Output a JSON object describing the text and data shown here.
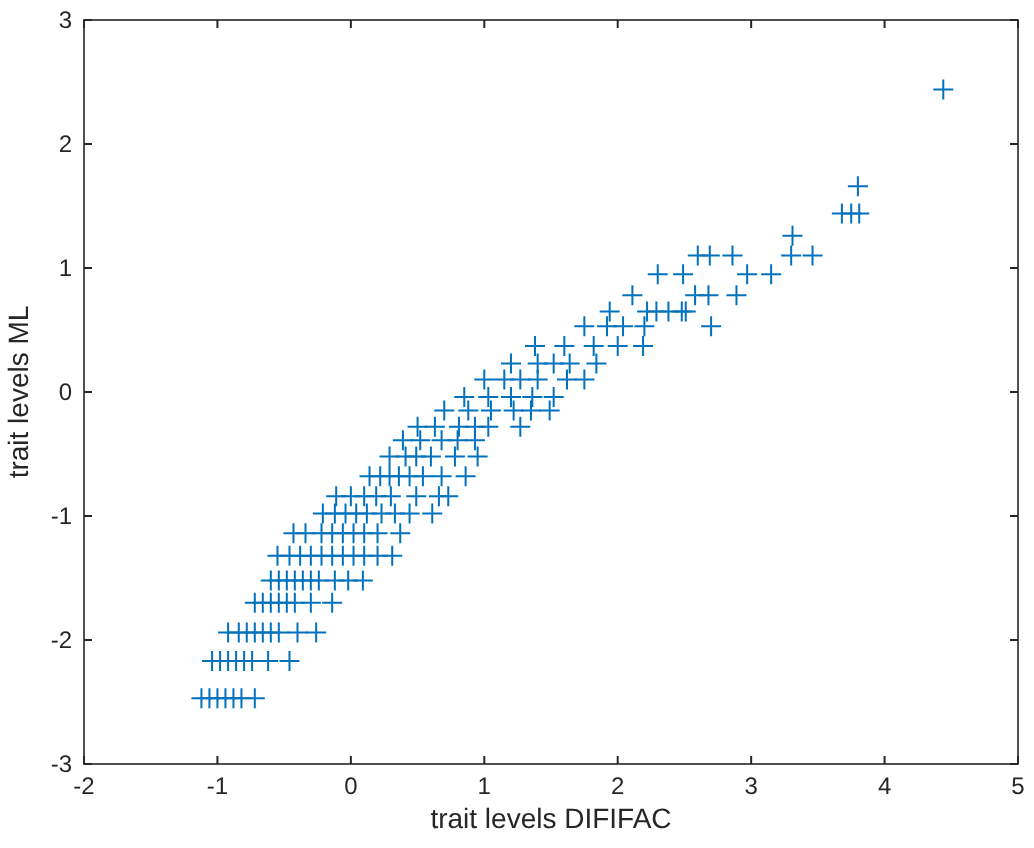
{
  "chart_data": {
    "type": "scatter",
    "xlabel": "trait levels DIFIFAC",
    "ylabel": "trait levels ML",
    "xlim": [
      -2,
      5
    ],
    "ylim": [
      -3,
      3
    ],
    "xticks": [
      -2,
      -1,
      0,
      1,
      2,
      3,
      4,
      5
    ],
    "yticks": [
      -3,
      -2,
      -1,
      0,
      1,
      2,
      3
    ],
    "marker": "cross",
    "series": [
      {
        "color": "#0072bd",
        "x": [
          -1.12,
          -1.06,
          -1.0,
          -0.94,
          -0.88,
          -0.82,
          -0.72,
          -1.04,
          -0.98,
          -0.92,
          -0.86,
          -0.8,
          -0.74,
          -0.62,
          -0.46,
          -0.92,
          -0.84,
          -0.78,
          -0.72,
          -0.66,
          -0.6,
          -0.54,
          -0.4,
          -0.26,
          -0.72,
          -0.66,
          -0.6,
          -0.54,
          -0.48,
          -0.42,
          -0.3,
          -0.14,
          -0.6,
          -0.54,
          -0.48,
          -0.42,
          -0.36,
          -0.3,
          -0.24,
          -0.12,
          -0.02,
          0.09,
          -0.55,
          -0.46,
          -0.38,
          -0.3,
          -0.22,
          -0.14,
          -0.06,
          0.02,
          0.1,
          0.2,
          0.31,
          -0.43,
          -0.34,
          -0.22,
          -0.14,
          -0.06,
          0.02,
          0.1,
          0.2,
          0.37,
          -0.21,
          -0.12,
          -0.04,
          0.04,
          0.12,
          0.23,
          0.33,
          0.44,
          0.61,
          -0.11,
          0.0,
          0.1,
          0.19,
          0.3,
          0.49,
          0.66,
          0.73,
          0.14,
          0.22,
          0.29,
          0.36,
          0.44,
          0.54,
          0.68,
          0.86,
          0.29,
          0.41,
          0.49,
          0.6,
          0.78,
          0.95,
          0.39,
          0.52,
          0.68,
          0.8,
          0.93,
          0.5,
          0.63,
          0.81,
          0.93,
          1.03,
          1.27,
          0.7,
          0.88,
          1.05,
          1.22,
          1.35,
          1.49,
          0.85,
          1.03,
          1.2,
          1.36,
          1.52,
          1.0,
          1.15,
          1.27,
          1.4,
          1.62,
          1.75,
          1.2,
          1.4,
          1.52,
          1.64,
          1.84,
          1.38,
          1.6,
          1.82,
          2.0,
          2.19,
          1.75,
          1.92,
          2.04,
          2.2,
          2.7,
          1.94,
          2.22,
          2.29,
          2.38,
          2.48,
          2.51,
          2.11,
          2.58,
          2.68,
          2.89,
          2.3,
          2.49,
          2.97,
          3.15,
          2.6,
          2.69,
          2.86,
          3.3,
          3.46,
          3.31,
          3.68,
          3.75,
          3.81,
          3.8,
          4.44
        ],
        "values": [
          -2.47,
          -2.47,
          -2.47,
          -2.47,
          -2.47,
          -2.47,
          -2.47,
          -2.17,
          -2.17,
          -2.17,
          -2.17,
          -2.17,
          -2.17,
          -2.17,
          -2.17,
          -1.94,
          -1.94,
          -1.94,
          -1.94,
          -1.94,
          -1.94,
          -1.94,
          -1.94,
          -1.94,
          -1.7,
          -1.7,
          -1.7,
          -1.7,
          -1.7,
          -1.7,
          -1.7,
          -1.7,
          -1.52,
          -1.52,
          -1.52,
          -1.52,
          -1.52,
          -1.52,
          -1.52,
          -1.52,
          -1.52,
          -1.52,
          -1.32,
          -1.32,
          -1.32,
          -1.32,
          -1.32,
          -1.32,
          -1.32,
          -1.32,
          -1.32,
          -1.32,
          -1.32,
          -1.14,
          -1.14,
          -1.14,
          -1.14,
          -1.14,
          -1.14,
          -1.14,
          -1.14,
          -1.14,
          -0.98,
          -0.98,
          -0.98,
          -0.98,
          -0.98,
          -0.98,
          -0.98,
          -0.98,
          -0.98,
          -0.84,
          -0.84,
          -0.84,
          -0.84,
          -0.84,
          -0.84,
          -0.84,
          -0.84,
          -0.68,
          -0.68,
          -0.68,
          -0.68,
          -0.68,
          -0.68,
          -0.68,
          -0.68,
          -0.52,
          -0.52,
          -0.52,
          -0.52,
          -0.52,
          -0.52,
          -0.39,
          -0.39,
          -0.39,
          -0.39,
          -0.39,
          -0.28,
          -0.28,
          -0.28,
          -0.28,
          -0.28,
          -0.28,
          -0.15,
          -0.15,
          -0.15,
          -0.15,
          -0.15,
          -0.15,
          -0.04,
          -0.04,
          -0.04,
          -0.04,
          -0.04,
          0.1,
          0.1,
          0.1,
          0.1,
          0.1,
          0.1,
          0.23,
          0.23,
          0.23,
          0.23,
          0.23,
          0.37,
          0.37,
          0.37,
          0.37,
          0.37,
          0.53,
          0.53,
          0.53,
          0.53,
          0.53,
          0.65,
          0.65,
          0.65,
          0.65,
          0.65,
          0.65,
          0.78,
          0.78,
          0.78,
          0.78,
          0.95,
          0.95,
          0.95,
          0.95,
          1.1,
          1.1,
          1.1,
          1.1,
          1.1,
          1.26,
          1.44,
          1.44,
          1.44,
          1.66,
          2.44
        ]
      }
    ]
  }
}
